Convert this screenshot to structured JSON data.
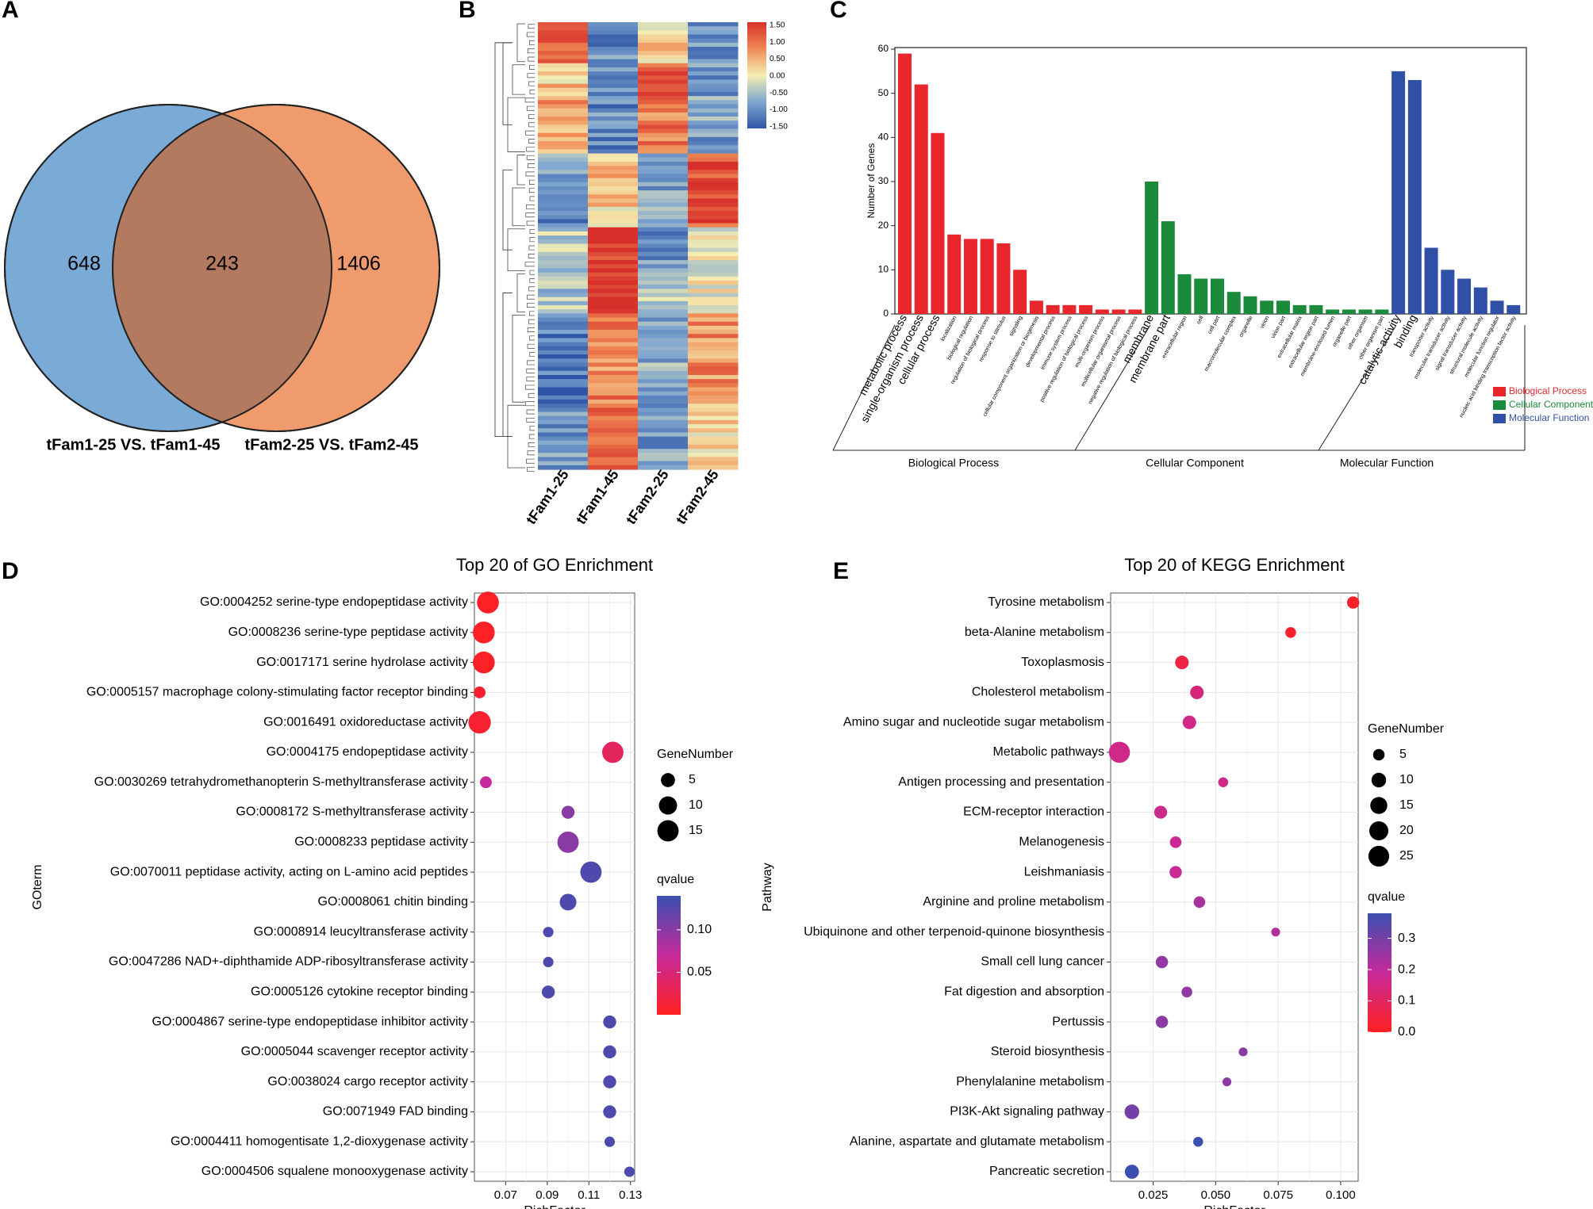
{
  "panels": {
    "a": "A",
    "b": "B",
    "c": "C",
    "d": "D",
    "e": "E"
  },
  "venn": {
    "left_only": "648",
    "overlap": "243",
    "right_only": "1406",
    "left_label": "tFam1-25 VS. tFam1-45",
    "right_label": "tFam2-25 VS. tFam2-45",
    "colors": {
      "left": "#7aaad6",
      "right": "#ef9b6d",
      "overlap": "#b47a5f"
    }
  },
  "heatmap": {
    "samples": [
      "tFam1-25",
      "tFam1-45",
      "tFam2-25",
      "tFam2-45"
    ],
    "scale_ticks": [
      "1.50",
      "1.00",
      "0.50",
      "0.00",
      "-0.50",
      "-1.00",
      "-1.50"
    ],
    "blocks": [
      {
        "rows": 10,
        "pattern": [
          1.2,
          -1.0,
          0.2,
          -1.0
        ]
      },
      {
        "rows": 8,
        "pattern": [
          0.3,
          -1.0,
          1.2,
          -0.9
        ]
      },
      {
        "rows": 14,
        "pattern": [
          0.6,
          -1.0,
          0.9,
          -0.8
        ]
      },
      {
        "rows": 8,
        "pattern": [
          -0.7,
          0.4,
          -0.6,
          1.3
        ]
      },
      {
        "rows": 10,
        "pattern": [
          -1.0,
          0.2,
          -0.8,
          1.1
        ]
      },
      {
        "rows": 11,
        "pattern": [
          -0.4,
          1.5,
          -0.9,
          0.0
        ]
      },
      {
        "rows": 10,
        "pattern": [
          -0.5,
          1.4,
          -0.3,
          -0.1
        ]
      },
      {
        "rows": 22,
        "pattern": [
          -1.1,
          0.8,
          -0.7,
          0.7
        ]
      },
      {
        "rows": 16,
        "pattern": [
          -0.9,
          1.0,
          -0.8,
          0.2
        ]
      }
    ]
  },
  "go_bar": {
    "ylabel": "Number of Genes",
    "ylim": [
      0,
      60
    ],
    "yticks": [
      0,
      10,
      20,
      30,
      40,
      50,
      60
    ],
    "categories": [
      "Biological Process",
      "Cellular Component",
      "Molecular Function"
    ],
    "legend": [
      "Biological Process",
      "Cellular Component",
      "Molecular Function"
    ],
    "colors": {
      "Biological Process": "#e8262b",
      "Cellular Component": "#1b8a3a",
      "Molecular Function": "#3050a8"
    },
    "bars": [
      {
        "label": "metabolic process",
        "value": 59,
        "cat": "Biological Process",
        "big": true
      },
      {
        "label": "single-organism process",
        "value": 52,
        "cat": "Biological Process",
        "big": true
      },
      {
        "label": "cellular process",
        "value": 41,
        "cat": "Biological Process",
        "big": true
      },
      {
        "label": "localization",
        "value": 18,
        "cat": "Biological Process"
      },
      {
        "label": "biological regulation",
        "value": 17,
        "cat": "Biological Process"
      },
      {
        "label": "regulation of biological process",
        "value": 17,
        "cat": "Biological Process"
      },
      {
        "label": "response to stimulus",
        "value": 16,
        "cat": "Biological Process"
      },
      {
        "label": "signaling",
        "value": 10,
        "cat": "Biological Process"
      },
      {
        "label": "cellular component organization or biogenesis",
        "value": 3,
        "cat": "Biological Process"
      },
      {
        "label": "developmental process",
        "value": 2,
        "cat": "Biological Process"
      },
      {
        "label": "immune system process",
        "value": 2,
        "cat": "Biological Process"
      },
      {
        "label": "positive regulation of biological process",
        "value": 2,
        "cat": "Biological Process"
      },
      {
        "label": "multi-organism process",
        "value": 1,
        "cat": "Biological Process"
      },
      {
        "label": "multicellular organismal process",
        "value": 1,
        "cat": "Biological Process"
      },
      {
        "label": "negative regulation of biological process",
        "value": 1,
        "cat": "Biological Process"
      },
      {
        "label": "membrane",
        "value": 30,
        "cat": "Cellular Component",
        "big": true
      },
      {
        "label": "membrane part",
        "value": 21,
        "cat": "Cellular Component",
        "big": true
      },
      {
        "label": "extracellular region",
        "value": 9,
        "cat": "Cellular Component"
      },
      {
        "label": "cell",
        "value": 8,
        "cat": "Cellular Component"
      },
      {
        "label": "cell part",
        "value": 8,
        "cat": "Cellular Component"
      },
      {
        "label": "macromolecular complex",
        "value": 5,
        "cat": "Cellular Component"
      },
      {
        "label": "organelle",
        "value": 4,
        "cat": "Cellular Component"
      },
      {
        "label": "virion",
        "value": 3,
        "cat": "Cellular Component"
      },
      {
        "label": "virion part",
        "value": 3,
        "cat": "Cellular Component"
      },
      {
        "label": "extracellular matrix",
        "value": 2,
        "cat": "Cellular Component"
      },
      {
        "label": "extracellular region part",
        "value": 2,
        "cat": "Cellular Component"
      },
      {
        "label": "membrane-enclosed lumen",
        "value": 1,
        "cat": "Cellular Component"
      },
      {
        "label": "organelle part",
        "value": 1,
        "cat": "Cellular Component"
      },
      {
        "label": "other organism",
        "value": 1,
        "cat": "Cellular Component"
      },
      {
        "label": "other organism part",
        "value": 1,
        "cat": "Cellular Component"
      },
      {
        "label": "catalytic activity",
        "value": 55,
        "cat": "Molecular Function",
        "big": true
      },
      {
        "label": "binding",
        "value": 53,
        "cat": "Molecular Function",
        "big": true
      },
      {
        "label": "transporter activity",
        "value": 15,
        "cat": "Molecular Function"
      },
      {
        "label": "molecular transducer activity",
        "value": 10,
        "cat": "Molecular Function"
      },
      {
        "label": "signal transducer activity",
        "value": 8,
        "cat": "Molecular Function"
      },
      {
        "label": "structural molecule activity",
        "value": 6,
        "cat": "Molecular Function"
      },
      {
        "label": "molecular function regulator",
        "value": 3,
        "cat": "Molecular Function"
      },
      {
        "label": "nucleic acid binding transcription factor activity",
        "value": 2,
        "cat": "Molecular Function"
      }
    ]
  },
  "chart_data": [
    {
      "type": "scatter",
      "title": "Top 20 of GO Enrichment",
      "xlabel": "RichFactor",
      "ylabel": "GOterm",
      "xlim": [
        0.055,
        0.132
      ],
      "xticks": [
        0.07,
        0.09,
        0.11,
        0.13
      ],
      "xtick_labels": [
        "0.07",
        "0.09",
        "0.11",
        "0.13"
      ],
      "size_legend_title": "GeneNumber",
      "size_legend": [
        5,
        10,
        15
      ],
      "size_range": [
        2,
        18
      ],
      "color_legend_title": "qvalue",
      "color_range": [
        0.0,
        0.14
      ],
      "color_ticks": [
        0.05,
        0.1
      ],
      "color_tick_labels": [
        "0.05",
        "0.10"
      ],
      "points": [
        {
          "term": "GO:0004252 serine-type endopeptidase activity",
          "x": 0.0615,
          "genes": 16,
          "q": 0.003
        },
        {
          "term": "GO:0008236 serine-type peptidase activity",
          "x": 0.0595,
          "genes": 16,
          "q": 0.003
        },
        {
          "term": "GO:0017171 serine hydrolase activity",
          "x": 0.0595,
          "genes": 16,
          "q": 0.003
        },
        {
          "term": "GO:0005157 macrophage colony-stimulating factor receptor binding",
          "x": 0.0575,
          "genes": 3,
          "q": 0.01
        },
        {
          "term": "GO:0016491 oxidoreductase activity",
          "x": 0.0575,
          "genes": 17,
          "q": 0.01
        },
        {
          "term": "GO:0004175 endopeptidase activity",
          "x": 0.1215,
          "genes": 15,
          "q": 0.035
        },
        {
          "term": "GO:0030269 tetrahydromethanopterin S-methyltransferase activity",
          "x": 0.0605,
          "genes": 3,
          "q": 0.07
        },
        {
          "term": "GO:0008172 S-methyltransferase activity",
          "x": 0.1,
          "genes": 4,
          "q": 0.1
        },
        {
          "term": "GO:0008233 peptidase activity",
          "x": 0.1,
          "genes": 15,
          "q": 0.1
        },
        {
          "term": "GO:0070011 peptidase activity, acting on L-amino acid peptides",
          "x": 0.111,
          "genes": 15,
          "q": 0.13
        },
        {
          "term": "GO:0008061 chitin binding",
          "x": 0.1,
          "genes": 8,
          "q": 0.13
        },
        {
          "term": "GO:0008914 leucyltransferase activity",
          "x": 0.0905,
          "genes": 2,
          "q": 0.13
        },
        {
          "term": "GO:0047286 NAD+-diphthamide ADP-ribosyltransferase activity",
          "x": 0.0905,
          "genes": 2,
          "q": 0.13
        },
        {
          "term": "GO:0005126 cytokine receptor binding",
          "x": 0.0905,
          "genes": 4,
          "q": 0.13
        },
        {
          "term": "GO:0004867 serine-type endopeptidase inhibitor activity",
          "x": 0.12,
          "genes": 4,
          "q": 0.13
        },
        {
          "term": "GO:0005044 scavenger receptor activity",
          "x": 0.12,
          "genes": 4,
          "q": 0.13
        },
        {
          "term": "GO:0038024 cargo receptor activity",
          "x": 0.12,
          "genes": 4,
          "q": 0.13
        },
        {
          "term": "GO:0071949 FAD binding",
          "x": 0.12,
          "genes": 4,
          "q": 0.13
        },
        {
          "term": "GO:0004411 homogentisate 1,2-dioxygenase activity",
          "x": 0.12,
          "genes": 2,
          "q": 0.13
        },
        {
          "term": "GO:0004506 squalene monooxygenase activity",
          "x": 0.1295,
          "genes": 2,
          "q": 0.13
        }
      ]
    },
    {
      "type": "scatter",
      "title": "Top 20 of KEGG Enrichment",
      "xlabel": "RichFactor",
      "ylabel": "Pathway",
      "xlim": [
        0.008,
        0.107
      ],
      "xticks": [
        0.025,
        0.05,
        0.075,
        0.1
      ],
      "xtick_labels": [
        "0.025",
        "0.050",
        "0.075",
        "0.100"
      ],
      "size_legend_title": "GeneNumber",
      "size_legend": [
        5,
        10,
        15,
        20,
        25
      ],
      "size_range": [
        2,
        26
      ],
      "color_legend_title": "qvalue",
      "color_range": [
        0.0,
        0.38
      ],
      "color_ticks": [
        0.0,
        0.1,
        0.2,
        0.3
      ],
      "color_tick_labels": [
        "0.0",
        "0.1",
        "0.2",
        "0.3"
      ],
      "points": [
        {
          "term": "Tyrosine metabolism",
          "x": 0.105,
          "genes": 6,
          "q": 0.01
        },
        {
          "term": "beta-Alanine metabolism",
          "x": 0.08,
          "genes": 4,
          "q": 0.02
        },
        {
          "term": "Toxoplasmosis",
          "x": 0.0365,
          "genes": 8,
          "q": 0.06
        },
        {
          "term": "Cholesterol metabolism",
          "x": 0.0425,
          "genes": 8,
          "q": 0.14
        },
        {
          "term": "Amino sugar and nucleotide sugar metabolism",
          "x": 0.0395,
          "genes": 8,
          "q": 0.16
        },
        {
          "term": "Metabolic pathways",
          "x": 0.0115,
          "genes": 26,
          "q": 0.16
        },
        {
          "term": "Antigen processing and presentation",
          "x": 0.053,
          "genes": 3,
          "q": 0.16
        },
        {
          "term": "ECM-receptor interaction",
          "x": 0.028,
          "genes": 7,
          "q": 0.17
        },
        {
          "term": "Melanogenesis",
          "x": 0.034,
          "genes": 5,
          "q": 0.18
        },
        {
          "term": "Leishmaniasis",
          "x": 0.034,
          "genes": 6,
          "q": 0.18
        },
        {
          "term": "Arginine and proline metabolism",
          "x": 0.0435,
          "genes": 5,
          "q": 0.23
        },
        {
          "term": "Ubiquinone and other terpenoid-quinone biosynthesis",
          "x": 0.074,
          "genes": 2,
          "q": 0.22
        },
        {
          "term": "Small cell lung cancer",
          "x": 0.0285,
          "genes": 6,
          "q": 0.26
        },
        {
          "term": "Fat digestion and absorption",
          "x": 0.0385,
          "genes": 4,
          "q": 0.26
        },
        {
          "term": "Pertussis",
          "x": 0.0285,
          "genes": 6,
          "q": 0.27
        },
        {
          "term": "Steroid biosynthesis",
          "x": 0.061,
          "genes": 2,
          "q": 0.27
        },
        {
          "term": "Phenylalanine metabolism",
          "x": 0.0545,
          "genes": 2,
          "q": 0.27
        },
        {
          "term": "PI3K-Akt signaling pathway",
          "x": 0.0165,
          "genes": 10,
          "q": 0.3
        },
        {
          "term": "Alanine, aspartate and glutamate metabolism",
          "x": 0.043,
          "genes": 3,
          "q": 0.38
        },
        {
          "term": "Pancreatic secretion",
          "x": 0.0165,
          "genes": 9,
          "q": 0.38
        }
      ]
    }
  ]
}
